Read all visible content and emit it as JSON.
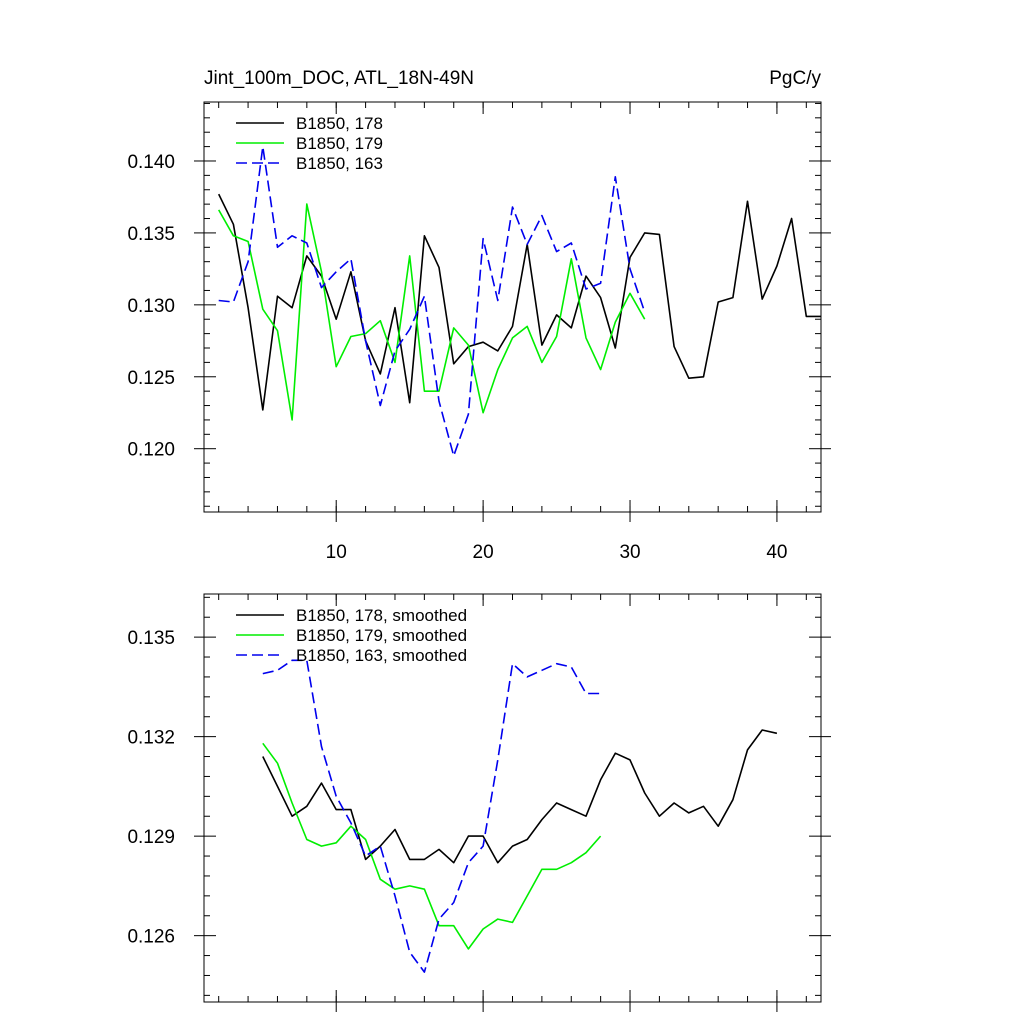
{
  "chart_data": [
    {
      "type": "line",
      "title": "Jint_100m_DOC, ATL_18N-49N",
      "units": "PgC/y",
      "xlim": [
        1,
        43
      ],
      "ylim": [
        0.1156,
        0.1441
      ],
      "xticks": [
        10,
        20,
        30,
        40
      ],
      "xtick_labels": [
        "10",
        "20",
        "30",
        "40"
      ],
      "yticks": [
        0.12,
        0.125,
        0.13,
        0.135,
        0.14
      ],
      "ytick_labels": [
        "0.120",
        "0.125",
        "0.130",
        "0.135",
        "0.140"
      ],
      "legend_position": "top-left",
      "series": [
        {
          "name": "B1850, 178",
          "color": "#000000",
          "dash": "solid",
          "x": [
            2,
            3,
            4,
            5,
            6,
            7,
            8,
            9,
            10,
            11,
            12,
            13,
            14,
            15,
            16,
            17,
            18,
            19,
            20,
            21,
            22,
            23,
            24,
            25,
            26,
            27,
            28,
            29,
            30,
            31,
            32,
            33,
            34,
            35,
            36,
            37,
            38,
            39,
            40,
            41,
            42,
            43
          ],
          "values": [
            0.1377,
            0.1356,
            0.1298,
            0.1227,
            0.1306,
            0.1298,
            0.1334,
            0.132,
            0.129,
            0.1323,
            0.1275,
            0.1252,
            0.1298,
            0.1232,
            0.1348,
            0.1326,
            0.1259,
            0.1271,
            0.1274,
            0.1268,
            0.1285,
            0.1342,
            0.1272,
            0.1293,
            0.1284,
            0.132,
            0.1305,
            0.127,
            0.1333,
            0.135,
            0.1349,
            0.1271,
            0.1249,
            0.125,
            0.1302,
            0.1305,
            0.1372,
            0.1304,
            0.1327,
            0.136,
            0.1292,
            0.1292
          ]
        },
        {
          "name": "B1850, 179",
          "color": "#00ee00",
          "dash": "solid",
          "x": [
            2,
            3,
            4,
            5,
            6,
            7,
            8,
            9,
            10,
            11,
            12,
            13,
            14,
            15,
            16,
            17,
            18,
            19,
            20,
            21,
            22,
            23,
            24,
            25,
            26,
            27,
            28,
            29,
            30,
            31
          ],
          "values": [
            0.1366,
            0.1348,
            0.1344,
            0.1297,
            0.1282,
            0.122,
            0.137,
            0.1323,
            0.1257,
            0.1278,
            0.128,
            0.1289,
            0.126,
            0.1334,
            0.124,
            0.124,
            0.1284,
            0.1272,
            0.1225,
            0.1255,
            0.1277,
            0.1285,
            0.126,
            0.1278,
            0.1332,
            0.1277,
            0.1255,
            0.1288,
            0.1308,
            0.129
          ]
        },
        {
          "name": "B1850, 163",
          "color": "#0000ee",
          "dash": "dashed",
          "x": [
            2,
            3,
            4,
            5,
            6,
            7,
            8,
            9,
            10,
            11,
            12,
            13,
            14,
            15,
            16,
            17,
            18,
            19,
            20,
            21,
            22,
            23,
            24,
            25,
            26,
            27,
            28,
            29,
            30,
            31
          ],
          "values": [
            0.1303,
            0.1302,
            0.133,
            0.141,
            0.134,
            0.1348,
            0.1343,
            0.1312,
            0.1323,
            0.1332,
            0.1275,
            0.123,
            0.1268,
            0.1283,
            0.1306,
            0.1233,
            0.1195,
            0.1224,
            0.1346,
            0.1303,
            0.1368,
            0.1342,
            0.1362,
            0.1337,
            0.1343,
            0.1311,
            0.1315,
            0.1389,
            0.1325,
            0.1295
          ]
        }
      ]
    },
    {
      "type": "line",
      "xlim": [
        1,
        43
      ],
      "ylim": [
        0.124,
        0.1363
      ],
      "xticks": [
        10,
        20,
        30,
        40
      ],
      "yticks": [
        0.126,
        0.129,
        0.132,
        0.135
      ],
      "ytick_labels": [
        "0.126",
        "0.129",
        "0.132",
        "0.135"
      ],
      "legend_position": "top-left",
      "series": [
        {
          "name": "B1850, 178, smoothed",
          "color": "#000000",
          "dash": "solid",
          "x": [
            5,
            6,
            7,
            8,
            9,
            10,
            11,
            12,
            13,
            14,
            15,
            16,
            17,
            18,
            19,
            20,
            21,
            22,
            23,
            24,
            25,
            26,
            27,
            28,
            29,
            30,
            31,
            32,
            33,
            34,
            35,
            36,
            37,
            38,
            39,
            40
          ],
          "values": [
            0.1314,
            0.1305,
            0.1296,
            0.1299,
            0.1306,
            0.1298,
            0.1298,
            0.1283,
            0.1287,
            0.1292,
            0.1283,
            0.1283,
            0.1286,
            0.1282,
            0.129,
            0.129,
            0.1282,
            0.1287,
            0.1289,
            0.1295,
            0.13,
            0.1298,
            0.1296,
            0.1307,
            0.1315,
            0.1313,
            0.1303,
            0.1296,
            0.13,
            0.1297,
            0.1299,
            0.1293,
            0.1301,
            0.1316,
            0.1322,
            0.1321
          ]
        },
        {
          "name": "B1850, 179, smoothed",
          "color": "#00ee00",
          "dash": "solid",
          "x": [
            5,
            6,
            7,
            8,
            9,
            10,
            11,
            12,
            13,
            14,
            15,
            16,
            17,
            18,
            19,
            20,
            21,
            22,
            23,
            24,
            25,
            26,
            27,
            28
          ],
          "values": [
            0.1318,
            0.1312,
            0.13,
            0.1289,
            0.1287,
            0.1288,
            0.1293,
            0.1289,
            0.1277,
            0.1274,
            0.1275,
            0.1274,
            0.1263,
            0.1263,
            0.1256,
            0.1262,
            0.1265,
            0.1264,
            0.1272,
            0.128,
            0.128,
            0.1282,
            0.1285,
            0.129
          ]
        },
        {
          "name": "B1850, 163, smoothed",
          "color": "#0000ee",
          "dash": "dashed",
          "x": [
            5,
            6,
            7,
            8,
            9,
            10,
            11,
            12,
            13,
            14,
            15,
            16,
            17,
            18,
            19,
            20,
            21,
            22,
            23,
            24,
            25,
            26,
            27,
            28
          ],
          "values": [
            0.1339,
            0.134,
            0.1343,
            0.1343,
            0.1317,
            0.1302,
            0.1294,
            0.1284,
            0.1287,
            0.1272,
            0.1255,
            0.1249,
            0.1265,
            0.127,
            0.1282,
            0.1287,
            0.1313,
            0.1342,
            0.1338,
            0.134,
            0.1342,
            0.1341,
            0.1333,
            0.1333
          ]
        }
      ]
    }
  ]
}
